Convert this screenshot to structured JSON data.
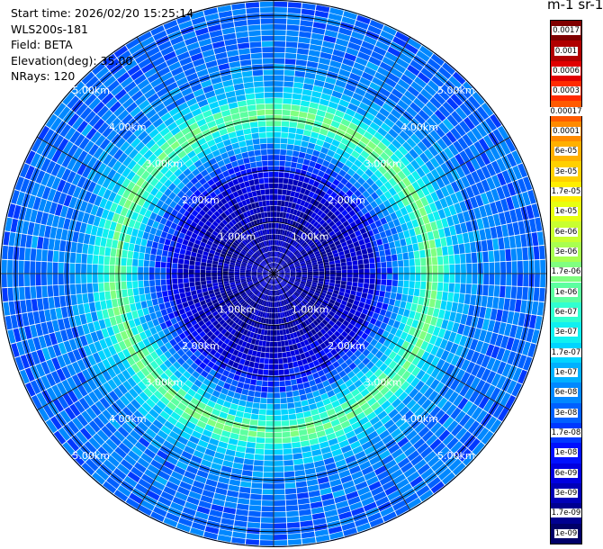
{
  "info": {
    "start_time": "Start time: 2026/02/20 15:25:14",
    "instrument": "WLS200s-181",
    "field": "Field: BETA",
    "elevation": "Elevation(deg): 35.00",
    "nrays": "NRays: 120"
  },
  "colorbar": {
    "title": "m-1 sr-1",
    "labels": [
      "0.0017",
      "0.001",
      "0.0006",
      "0.0003",
      "0.00017",
      "0.0001",
      "6e-05",
      "3e-05",
      "1.7e-05",
      "1e-05",
      "6e-06",
      "3e-06",
      "1.7e-06",
      "1e-06",
      "6e-07",
      "3e-07",
      "1.7e-07",
      "1e-07",
      "6e-08",
      "3e-08",
      "1.7e-08",
      "1e-08",
      "6e-09",
      "3e-09",
      "1.7e-09",
      "1e-09"
    ],
    "colors": [
      "#7f0000",
      "#b00000",
      "#e00000",
      "#ff2a00",
      "#ff5a00",
      "#ff8a00",
      "#ffb000",
      "#ffd000",
      "#ffee00",
      "#e8ff10",
      "#c8ff30",
      "#a8ff50",
      "#80ff80",
      "#5cffa0",
      "#30ffd0",
      "#10f0f0",
      "#00d4ff",
      "#00b0ff",
      "#0088ff",
      "#0060ff",
      "#0038ff",
      "#0010ff",
      "#0000e0",
      "#0000b8",
      "#000090",
      "#000068"
    ]
  },
  "chart_data": {
    "type": "heatmap",
    "projection": "polar-ppi",
    "nrays": 120,
    "max_range_km": 5.3,
    "range_rings_km": [
      1,
      2,
      3,
      4,
      5
    ],
    "ring_labels": [
      "1.00km",
      "2.00km",
      "3.00km",
      "4.00km",
      "5.00km"
    ],
    "radial_lines_deg": [
      0,
      30,
      60,
      90,
      120,
      150,
      180,
      210,
      240,
      270,
      300,
      330
    ],
    "color_scale": "log",
    "value_range": [
      1e-09,
      0.0017
    ],
    "range_profile": [
      {
        "range_km": 0.0,
        "value": 5e-09
      },
      {
        "range_km": 1.0,
        "value": 3e-09
      },
      {
        "range_km": 1.8,
        "value": 6e-09
      },
      {
        "range_km": 2.3,
        "value": 3e-08
      },
      {
        "range_km": 2.7,
        "value": 2e-07
      },
      {
        "range_km": 3.1,
        "value": 1.5e-06
      },
      {
        "range_km": 3.5,
        "value": 1.5e-07
      },
      {
        "range_km": 4.0,
        "value": 5e-08
      },
      {
        "range_km": 5.3,
        "value": 4e-08
      }
    ]
  }
}
